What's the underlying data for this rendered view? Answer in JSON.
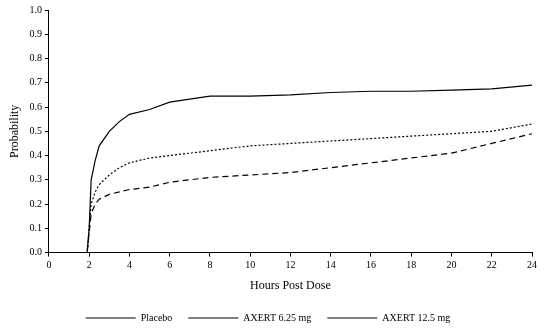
{
  "chart_data": {
    "type": "line",
    "x_label": "Hours Post Dose",
    "y_label": "Probability",
    "x": [
      0,
      1.9,
      2,
      2.1,
      2.3,
      2.5,
      3,
      3.5,
      4,
      5,
      6,
      8,
      10,
      12,
      14,
      16,
      18,
      20,
      22,
      24
    ],
    "series": [
      {
        "name": "Placebo",
        "color": "#000000",
        "line_style": "solid",
        "values": [
          0,
          0,
          0.1,
          0.3,
          0.38,
          0.44,
          0.5,
          0.54,
          0.57,
          0.59,
          0.62,
          0.645,
          0.645,
          0.65,
          0.66,
          0.665,
          0.665,
          0.67,
          0.675,
          0.69
        ]
      },
      {
        "name": "AXERT 6.25 mg",
        "color": "#000000",
        "line_style": "dotted",
        "values": [
          0,
          0,
          0.1,
          0.2,
          0.25,
          0.28,
          0.32,
          0.35,
          0.37,
          0.39,
          0.4,
          0.42,
          0.44,
          0.45,
          0.46,
          0.47,
          0.48,
          0.49,
          0.5,
          0.53
        ]
      },
      {
        "name": "AXERT 12.5 mg",
        "color": "#000000",
        "line_style": "dashed",
        "values": [
          0,
          0,
          0.08,
          0.16,
          0.2,
          0.22,
          0.24,
          0.25,
          0.26,
          0.27,
          0.29,
          0.31,
          0.32,
          0.33,
          0.35,
          0.37,
          0.39,
          0.41,
          0.45,
          0.49
        ]
      }
    ],
    "xlim": [
      0,
      24
    ],
    "xticks": [
      0,
      2,
      4,
      6,
      8,
      10,
      12,
      14,
      16,
      18,
      20,
      22,
      24
    ],
    "ylim": [
      0,
      1
    ],
    "yticks": [
      {
        "value": 0,
        "label": "0.0"
      },
      0.1,
      0.2,
      0.3,
      0.4,
      0.5,
      0.6,
      0.7,
      0.8,
      0.9,
      {
        "value": 1,
        "label": "1.0"
      }
    ],
    "grid": false,
    "legend": "bottom"
  }
}
